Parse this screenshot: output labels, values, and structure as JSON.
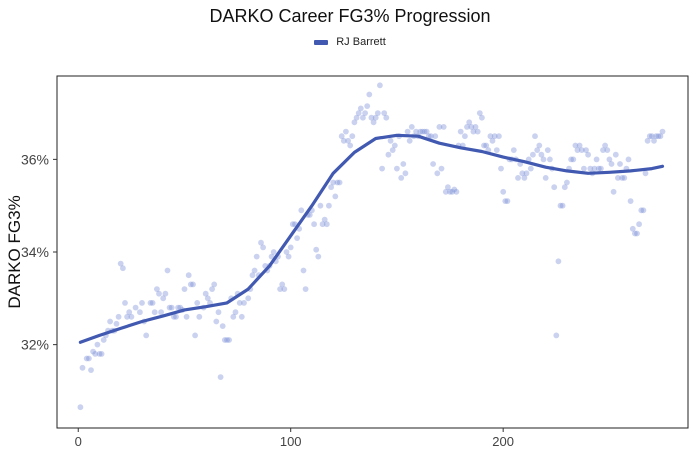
{
  "chart_data": {
    "type": "scatter",
    "title": "DARKO Career FG3% Progression",
    "ylabel": "DARKO FG3%",
    "xlabel": "",
    "xlim": [
      -10,
      287
    ],
    "ylim": [
      30.2,
      37.8
    ],
    "x_ticks": [
      0,
      100,
      200
    ],
    "x_tick_labels": [
      "0",
      "100",
      "200"
    ],
    "y_ticks": [
      32,
      34,
      36
    ],
    "y_tick_labels": [
      "32%",
      "34%",
      "36%"
    ],
    "grid": false,
    "legend_position": "top",
    "colors": {
      "series": "#4159b0",
      "points": "#7a8fd6"
    },
    "series": [
      {
        "name": "RJ Barrett",
        "points": [
          [
            1,
            30.65
          ],
          [
            2,
            31.5
          ],
          [
            4,
            31.7
          ],
          [
            5,
            31.7
          ],
          [
            6,
            31.45
          ],
          [
            7,
            31.85
          ],
          [
            8,
            31.8
          ],
          [
            9,
            32.0
          ],
          [
            10,
            31.8
          ],
          [
            11,
            31.8
          ],
          [
            12,
            32.1
          ],
          [
            13,
            32.2
          ],
          [
            14,
            32.3
          ],
          [
            15,
            32.5
          ],
          [
            16,
            32.3
          ],
          [
            17,
            32.3
          ],
          [
            18,
            32.45
          ],
          [
            19,
            32.6
          ],
          [
            20,
            33.75
          ],
          [
            21,
            33.65
          ],
          [
            22,
            32.9
          ],
          [
            23,
            32.6
          ],
          [
            24,
            32.7
          ],
          [
            25,
            32.6
          ],
          [
            27,
            32.8
          ],
          [
            29,
            32.7
          ],
          [
            30,
            32.9
          ],
          [
            31,
            32.5
          ],
          [
            32,
            32.2
          ],
          [
            34,
            32.9
          ],
          [
            35,
            32.9
          ],
          [
            36,
            32.7
          ],
          [
            37,
            33.2
          ],
          [
            38,
            33.1
          ],
          [
            39,
            32.7
          ],
          [
            40,
            33.0
          ],
          [
            41,
            33.1
          ],
          [
            42,
            33.6
          ],
          [
            43,
            32.8
          ],
          [
            44,
            32.8
          ],
          [
            45,
            32.6
          ],
          [
            46,
            32.6
          ],
          [
            47,
            32.8
          ],
          [
            48,
            32.8
          ],
          [
            49,
            32.75
          ],
          [
            50,
            33.2
          ],
          [
            51,
            32.6
          ],
          [
            52,
            33.5
          ],
          [
            53,
            33.3
          ],
          [
            54,
            33.3
          ],
          [
            55,
            32.2
          ],
          [
            56,
            32.9
          ],
          [
            57,
            32.6
          ],
          [
            59,
            32.8
          ],
          [
            60,
            33.1
          ],
          [
            61,
            33.0
          ],
          [
            62,
            32.9
          ],
          [
            63,
            33.2
          ],
          [
            64,
            33.3
          ],
          [
            65,
            32.5
          ],
          [
            66,
            32.7
          ],
          [
            67,
            31.3
          ],
          [
            68,
            32.4
          ],
          [
            69,
            32.1
          ],
          [
            70,
            32.1
          ],
          [
            71,
            32.1
          ],
          [
            72,
            33.0
          ],
          [
            73,
            32.6
          ],
          [
            74,
            32.7
          ],
          [
            75,
            33.1
          ],
          [
            76,
            32.9
          ],
          [
            77,
            32.6
          ],
          [
            78,
            32.9
          ],
          [
            80,
            33.0
          ],
          [
            81,
            33.2
          ],
          [
            82,
            33.5
          ],
          [
            83,
            33.6
          ],
          [
            84,
            33.9
          ],
          [
            85,
            33.5
          ],
          [
            86,
            34.2
          ],
          [
            87,
            34.1
          ],
          [
            88,
            33.7
          ],
          [
            89,
            33.6
          ],
          [
            90,
            33.7
          ],
          [
            91,
            33.9
          ],
          [
            92,
            34.0
          ],
          [
            93,
            33.8
          ],
          [
            94,
            33.9
          ],
          [
            95,
            33.2
          ],
          [
            96,
            33.3
          ],
          [
            97,
            33.2
          ],
          [
            98,
            34.0
          ],
          [
            99,
            33.9
          ],
          [
            100,
            34.1
          ],
          [
            101,
            34.6
          ],
          [
            102,
            34.6
          ],
          [
            103,
            34.3
          ],
          [
            104,
            34.5
          ],
          [
            105,
            34.9
          ],
          [
            106,
            33.6
          ],
          [
            107,
            33.2
          ],
          [
            108,
            34.8
          ],
          [
            109,
            34.8
          ],
          [
            110,
            34.9
          ],
          [
            111,
            34.6
          ],
          [
            112,
            34.05
          ],
          [
            113,
            33.9
          ],
          [
            114,
            35.0
          ],
          [
            115,
            34.6
          ],
          [
            116,
            34.7
          ],
          [
            117,
            34.6
          ],
          [
            118,
            35.0
          ],
          [
            119,
            35.4
          ],
          [
            120,
            35.5
          ],
          [
            121,
            35.2
          ],
          [
            122,
            35.5
          ],
          [
            123,
            35.5
          ],
          [
            124,
            36.5
          ],
          [
            125,
            36.4
          ],
          [
            126,
            36.6
          ],
          [
            127,
            36.4
          ],
          [
            128,
            36.3
          ],
          [
            129,
            36.5
          ],
          [
            130,
            36.8
          ],
          [
            131,
            36.9
          ],
          [
            132,
            37.0
          ],
          [
            133,
            37.1
          ],
          [
            134,
            36.9
          ],
          [
            135,
            37.0
          ],
          [
            136,
            37.15
          ],
          [
            137,
            37.4
          ],
          [
            138,
            36.9
          ],
          [
            139,
            36.8
          ],
          [
            140,
            36.9
          ],
          [
            141,
            37.0
          ],
          [
            142,
            37.6
          ],
          [
            143,
            35.8
          ],
          [
            144,
            37.0
          ],
          [
            145,
            36.9
          ],
          [
            146,
            36.1
          ],
          [
            147,
            36.4
          ],
          [
            148,
            36.2
          ],
          [
            149,
            36.3
          ],
          [
            150,
            35.8
          ],
          [
            151,
            36.5
          ],
          [
            152,
            35.6
          ],
          [
            153,
            35.9
          ],
          [
            154,
            35.7
          ],
          [
            155,
            36.6
          ],
          [
            156,
            36.4
          ],
          [
            157,
            36.7
          ],
          [
            158,
            36.5
          ],
          [
            159,
            36.6
          ],
          [
            160,
            36.5
          ],
          [
            161,
            36.6
          ],
          [
            162,
            36.6
          ],
          [
            163,
            36.6
          ],
          [
            164,
            36.6
          ],
          [
            165,
            36.5
          ],
          [
            166,
            36.5
          ],
          [
            167,
            35.9
          ],
          [
            168,
            36.5
          ],
          [
            169,
            35.7
          ],
          [
            170,
            36.7
          ],
          [
            171,
            35.8
          ],
          [
            172,
            36.7
          ],
          [
            173,
            35.3
          ],
          [
            174,
            35.4
          ],
          [
            175,
            35.3
          ],
          [
            176,
            35.3
          ],
          [
            177,
            35.35
          ],
          [
            178,
            35.3
          ],
          [
            179,
            36.3
          ],
          [
            180,
            36.6
          ],
          [
            181,
            36.3
          ],
          [
            182,
            36.5
          ],
          [
            183,
            36.7
          ],
          [
            184,
            36.8
          ],
          [
            185,
            36.7
          ],
          [
            186,
            36.6
          ],
          [
            187,
            36.7
          ],
          [
            188,
            36.6
          ],
          [
            189,
            37.0
          ],
          [
            190,
            36.9
          ],
          [
            191,
            36.3
          ],
          [
            192,
            36.3
          ],
          [
            193,
            36.2
          ],
          [
            194,
            36.5
          ],
          [
            195,
            36.4
          ],
          [
            196,
            36.5
          ],
          [
            197,
            36.2
          ],
          [
            198,
            36.5
          ],
          [
            199,
            35.8
          ],
          [
            200,
            35.3
          ],
          [
            201,
            35.1
          ],
          [
            202,
            35.1
          ],
          [
            203,
            36.0
          ],
          [
            204,
            36.0
          ],
          [
            205,
            36.2
          ],
          [
            206,
            36.0
          ],
          [
            207,
            35.6
          ],
          [
            208,
            35.9
          ],
          [
            209,
            35.7
          ],
          [
            210,
            35.6
          ],
          [
            211,
            35.7
          ],
          [
            212,
            36.0
          ],
          [
            213,
            35.8
          ],
          [
            214,
            36.1
          ],
          [
            215,
            36.5
          ],
          [
            216,
            36.2
          ],
          [
            217,
            36.3
          ],
          [
            218,
            36.1
          ],
          [
            219,
            36.0
          ],
          [
            220,
            35.6
          ],
          [
            221,
            36.2
          ],
          [
            222,
            36.0
          ],
          [
            223,
            35.8
          ],
          [
            224,
            35.4
          ],
          [
            225,
            32.2
          ],
          [
            226,
            33.8
          ],
          [
            227,
            35.0
          ],
          [
            228,
            35.0
          ],
          [
            229,
            35.4
          ],
          [
            230,
            35.5
          ],
          [
            231,
            35.8
          ],
          [
            232,
            36.0
          ],
          [
            233,
            36.0
          ],
          [
            234,
            36.3
          ],
          [
            235,
            36.2
          ],
          [
            236,
            36.3
          ],
          [
            237,
            36.2
          ],
          [
            238,
            35.8
          ],
          [
            239,
            36.2
          ],
          [
            240,
            36.1
          ],
          [
            241,
            35.8
          ],
          [
            242,
            35.7
          ],
          [
            243,
            35.8
          ],
          [
            244,
            36.0
          ],
          [
            245,
            35.8
          ],
          [
            246,
            35.8
          ],
          [
            247,
            36.2
          ],
          [
            248,
            36.3
          ],
          [
            249,
            36.2
          ],
          [
            250,
            36.0
          ],
          [
            251,
            35.9
          ],
          [
            252,
            35.3
          ],
          [
            253,
            36.1
          ],
          [
            254,
            35.6
          ],
          [
            255,
            35.9
          ],
          [
            256,
            35.6
          ],
          [
            257,
            35.6
          ],
          [
            258,
            35.8
          ],
          [
            259,
            36.0
          ],
          [
            260,
            35.1
          ],
          [
            261,
            34.5
          ],
          [
            262,
            34.4
          ],
          [
            263,
            34.4
          ],
          [
            264,
            34.6
          ],
          [
            265,
            34.9
          ],
          [
            266,
            34.9
          ],
          [
            267,
            35.7
          ],
          [
            268,
            36.4
          ],
          [
            269,
            36.5
          ],
          [
            270,
            36.5
          ],
          [
            271,
            36.4
          ],
          [
            272,
            36.5
          ],
          [
            273,
            36.5
          ],
          [
            274,
            36.5
          ],
          [
            275,
            36.6
          ]
        ],
        "trend": [
          [
            1,
            32.05
          ],
          [
            10,
            32.2
          ],
          [
            20,
            32.35
          ],
          [
            30,
            32.5
          ],
          [
            40,
            32.62
          ],
          [
            50,
            32.75
          ],
          [
            60,
            32.82
          ],
          [
            70,
            32.9
          ],
          [
            80,
            33.2
          ],
          [
            90,
            33.7
          ],
          [
            100,
            34.35
          ],
          [
            110,
            35.0
          ],
          [
            120,
            35.7
          ],
          [
            130,
            36.15
          ],
          [
            140,
            36.45
          ],
          [
            150,
            36.52
          ],
          [
            160,
            36.5
          ],
          [
            170,
            36.35
          ],
          [
            180,
            36.25
          ],
          [
            190,
            36.17
          ],
          [
            200,
            36.05
          ],
          [
            210,
            35.95
          ],
          [
            220,
            35.83
          ],
          [
            230,
            35.75
          ],
          [
            240,
            35.7
          ],
          [
            250,
            35.72
          ],
          [
            260,
            35.75
          ],
          [
            270,
            35.8
          ],
          [
            275,
            35.85
          ]
        ]
      }
    ]
  }
}
